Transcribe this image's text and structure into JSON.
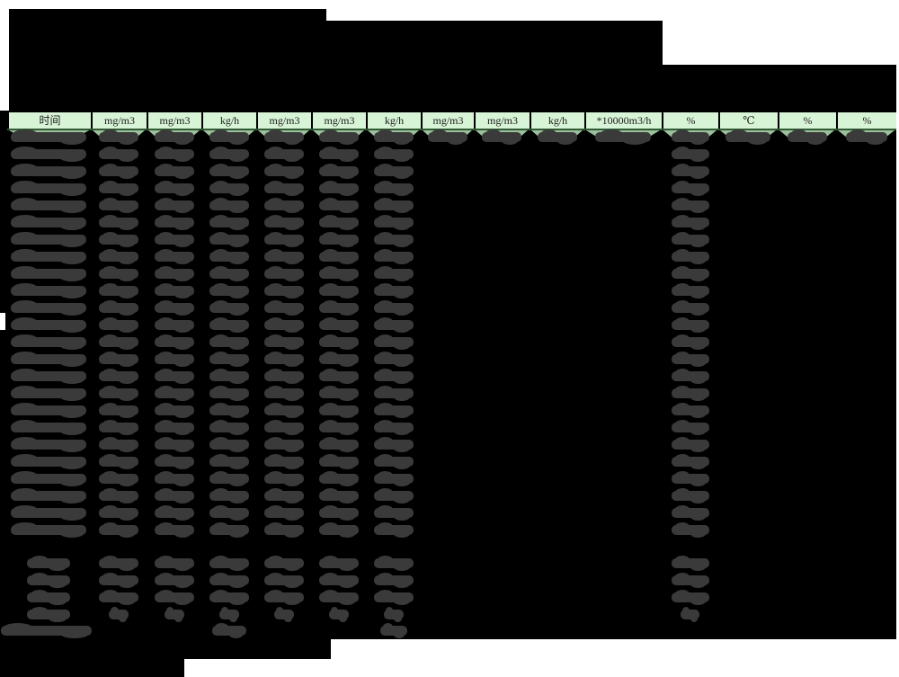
{
  "page": {
    "background_color": "#ffffff",
    "redaction_color": "#000000",
    "blob_color": "#3a3a3a"
  },
  "table": {
    "header": {
      "labels": [
        "时间",
        "mg/m3",
        "mg/m3",
        "kg/h",
        "mg/m3",
        "mg/m3",
        "kg/h",
        "mg/m3",
        "mg/m3",
        "kg/h",
        "*10000m3/h",
        "%",
        "℃",
        "%",
        "%"
      ],
      "fill_color": "#d8f4d6",
      "row1_fill_color": "#9cc09c",
      "underline_color": "#2f5a33",
      "border_color": "#000000"
    },
    "body": {
      "redacted": true,
      "data_row_count": 24,
      "summary_row_count": 4,
      "has_footnote_row": true,
      "first_row_columns_with_values": [
        1,
        2,
        3,
        4,
        5,
        6,
        7,
        8,
        9,
        10,
        11,
        12,
        13,
        14,
        15
      ],
      "other_rows_columns_with_values": [
        1,
        2,
        3,
        4,
        5,
        6,
        7,
        12
      ],
      "summary_rows_columns_with_values": [
        1,
        2,
        3,
        4,
        5,
        6,
        7,
        12
      ],
      "footnote_row_columns_with_values": [
        1,
        4,
        7
      ]
    }
  }
}
